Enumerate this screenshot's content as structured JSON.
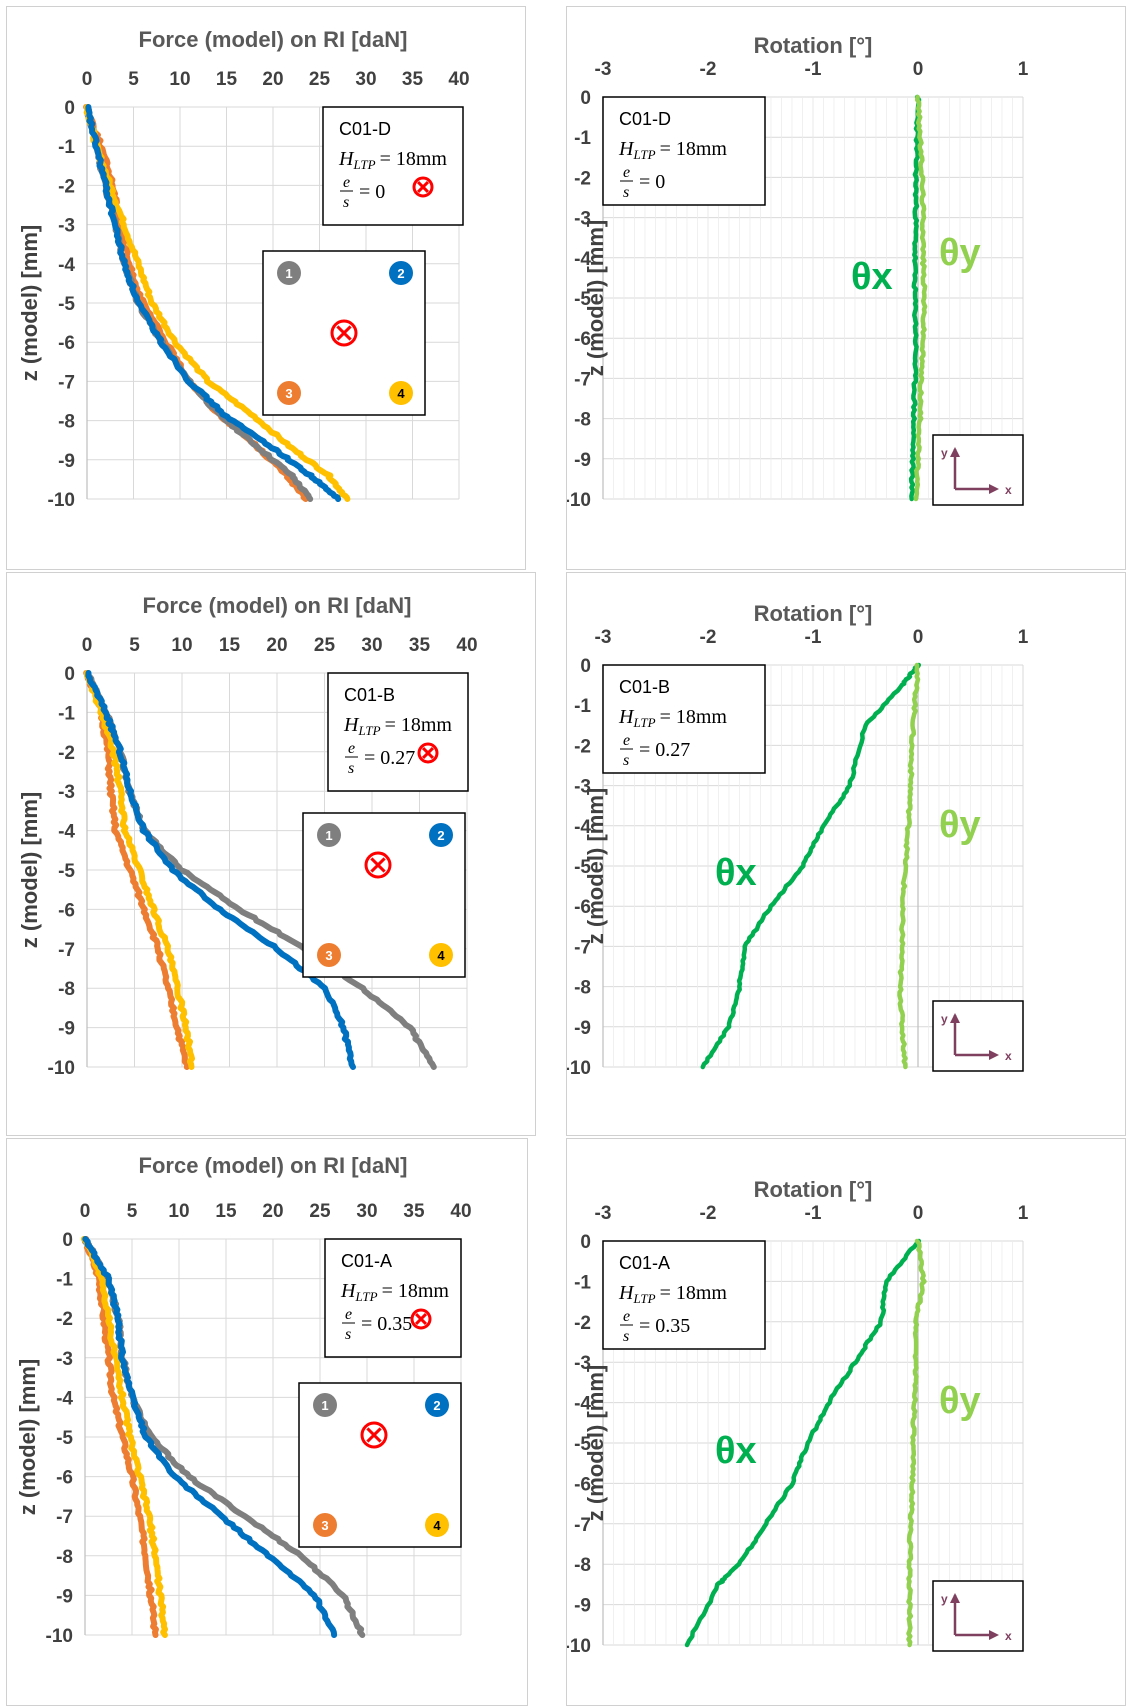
{
  "colors": {
    "pile1": "#7f7f7f",
    "pile2": "#0070c0",
    "pile3": "#ed7d31",
    "pile4": "#ffc000",
    "theta_x": "#00b050",
    "theta_y": "#92d050",
    "grid": "#d9d9d9",
    "marker": "#ff0000",
    "axes_icon": "#7f3f5f"
  },
  "chart_data": [
    {
      "panel": "force-c01-d",
      "type": "line",
      "title": "Force (model) on RI [daN]",
      "ylabel": "z (model) [mm]",
      "xlim": [
        0,
        40
      ],
      "ylim": [
        -10,
        0
      ],
      "xticks": [
        "0",
        "5",
        "10",
        "15",
        "20",
        "25",
        "30",
        "35",
        "40"
      ],
      "yticks": [
        "0",
        "-1",
        "-2",
        "-3",
        "-4",
        "-5",
        "-6",
        "-7",
        "-8",
        "-9",
        "-10"
      ],
      "annotation": {
        "id": "C01-D",
        "h_sym": "H",
        "h_sub": "LTP",
        "h_val": "= 18mm",
        "e_top": "e",
        "e_bot": "s",
        "e_val": "= 0"
      },
      "pile_labels": [
        "1",
        "2",
        "3",
        "4"
      ],
      "series": [
        {
          "pile": 1,
          "x": [
            0,
            1,
            2,
            3,
            4,
            5.5,
            8,
            11,
            14,
            18,
            22,
            24
          ],
          "y": [
            0,
            -1,
            -2,
            -3,
            -4,
            -5,
            -6,
            -7,
            -7.8,
            -8.6,
            -9.4,
            -10
          ]
        },
        {
          "pile": 2,
          "x": [
            0,
            1,
            2,
            3,
            4,
            5.5,
            8,
            11,
            15,
            20,
            24,
            27
          ],
          "y": [
            0,
            -1,
            -2,
            -3,
            -4,
            -5,
            -6,
            -7,
            -7.9,
            -8.7,
            -9.4,
            -10
          ]
        },
        {
          "pile": 3,
          "x": [
            0,
            1.5,
            2.8,
            3.5,
            4.5,
            6,
            8.5,
            11,
            14,
            18,
            21.5,
            23.5
          ],
          "y": [
            0,
            -1,
            -2,
            -3,
            -4,
            -5,
            -6,
            -7,
            -7.8,
            -8.6,
            -9.4,
            -10
          ]
        },
        {
          "pile": 4,
          "x": [
            0,
            1,
            2.5,
            4,
            5.5,
            7,
            9.5,
            13,
            18,
            22,
            26,
            28
          ],
          "y": [
            0,
            -1,
            -2,
            -3,
            -4,
            -5,
            -6,
            -7,
            -7.9,
            -8.7,
            -9.4,
            -10
          ]
        }
      ]
    },
    {
      "panel": "rotation-c01-d",
      "type": "line",
      "title": "Rotation [°]",
      "ylabel": "z (model) [mm]",
      "xlim": [
        -3,
        1
      ],
      "ylim": [
        -10,
        0
      ],
      "xticks": [
        "-3",
        "-2",
        "-1",
        "0",
        "1"
      ],
      "yticks": [
        "0",
        "-1",
        "-2",
        "-3",
        "-4",
        "-5",
        "-6",
        "-7",
        "-8",
        "-9",
        "-10"
      ],
      "annotation": {
        "id": "C01-D",
        "h_sym": "H",
        "h_sub": "LTP",
        "h_val": "= 18mm",
        "e_top": "e",
        "e_bot": "s",
        "e_val": "= 0"
      },
      "theta_x_label": "θx",
      "theta_y_label": "θy",
      "axes_icon": {
        "y": "y",
        "x": "x"
      },
      "series": [
        {
          "name": "θx",
          "x": [
            0,
            -0.01,
            -0.02,
            -0.02,
            -0.03,
            -0.03,
            -0.02,
            -0.03,
            -0.04,
            -0.05,
            -0.06
          ],
          "y": [
            0,
            -1,
            -2,
            -3,
            -4,
            -5,
            -6,
            -7,
            -8,
            -9,
            -10
          ]
        },
        {
          "name": "θy",
          "x": [
            0,
            0.02,
            0.04,
            0.05,
            0.05,
            0.06,
            0.05,
            0.03,
            0.02,
            0.0,
            -0.02
          ],
          "y": [
            0,
            -1,
            -2,
            -3,
            -4,
            -5,
            -6,
            -7,
            -8,
            -9,
            -10
          ]
        }
      ]
    },
    {
      "panel": "force-c01-b",
      "type": "line",
      "title": "Force (model) on RI [daN]",
      "ylabel": "z (model) [mm]",
      "xlim": [
        0,
        40
      ],
      "ylim": [
        -10,
        0
      ],
      "xticks": [
        "0",
        "5",
        "10",
        "15",
        "20",
        "25",
        "30",
        "35",
        "40"
      ],
      "yticks": [
        "0",
        "-1",
        "-2",
        "-3",
        "-4",
        "-5",
        "-6",
        "-7",
        "-8",
        "-9",
        "-10"
      ],
      "annotation": {
        "id": "C01-B",
        "h_sym": "H",
        "h_sub": "LTP",
        "h_val": "= 18mm",
        "e_top": "e",
        "e_bot": "s",
        "e_val": "= 0.27"
      },
      "pile_labels": [
        "1",
        "2",
        "3",
        "4"
      ],
      "series": [
        {
          "pile": 1,
          "x": [
            0,
            2,
            3.5,
            4.5,
            6,
            10,
            16,
            23,
            29,
            34,
            36.5
          ],
          "y": [
            0,
            -1,
            -2,
            -3,
            -4,
            -5,
            -6,
            -7,
            -8,
            -9,
            -10
          ]
        },
        {
          "pile": 2,
          "x": [
            0,
            2,
            3.5,
            4.5,
            6,
            9,
            14,
            20,
            25,
            27,
            28
          ],
          "y": [
            0,
            -1,
            -2,
            -3,
            -4,
            -5,
            -6,
            -7,
            -8,
            -9,
            -10
          ]
        },
        {
          "pile": 3,
          "x": [
            0,
            1.5,
            2.2,
            2.5,
            3,
            4.5,
            6,
            7.5,
            8.5,
            9.5,
            10.5
          ],
          "y": [
            0,
            -1,
            -2,
            -3,
            -4,
            -5,
            -6,
            -7,
            -8,
            -9,
            -10
          ]
        },
        {
          "pile": 4,
          "x": [
            0,
            1.5,
            2.8,
            3.5,
            4,
            5.5,
            7,
            8.5,
            9.5,
            10.5,
            11
          ],
          "y": [
            0,
            -1,
            -2,
            -3,
            -4,
            -5,
            -6,
            -7,
            -8,
            -9,
            -10
          ]
        }
      ]
    },
    {
      "panel": "rotation-c01-b",
      "type": "line",
      "title": "Rotation [°]",
      "ylabel": "z (model) [mm]",
      "xlim": [
        -3,
        1
      ],
      "ylim": [
        -10,
        0
      ],
      "xticks": [
        "-3",
        "-2",
        "-1",
        "0",
        "1"
      ],
      "yticks": [
        "0",
        "-1",
        "-2",
        "-3",
        "-4",
        "-5",
        "-6",
        "-7",
        "-8",
        "-9",
        "-10"
      ],
      "annotation": {
        "id": "C01-B",
        "h_sym": "H",
        "h_sub": "LTP",
        "h_val": "= 18mm",
        "e_top": "e",
        "e_bot": "s",
        "e_val": "= 0.27"
      },
      "theta_x_label": "θx",
      "theta_y_label": "θy",
      "axes_icon": {
        "y": "y",
        "x": "x"
      },
      "series": [
        {
          "name": "θx",
          "x": [
            0,
            -0.15,
            -0.5,
            -0.65,
            -0.9,
            -1.1,
            -1.4,
            -1.65,
            -1.7,
            -1.8,
            -2.05
          ],
          "y": [
            0,
            -0.5,
            -1.5,
            -3,
            -4,
            -5,
            -6,
            -7,
            -8,
            -9,
            -10
          ]
        },
        {
          "name": "θy",
          "x": [
            0,
            -0.03,
            -0.06,
            -0.07,
            -0.09,
            -0.12,
            -0.15,
            -0.15,
            -0.17,
            -0.15,
            -0.12
          ],
          "y": [
            0,
            -1,
            -2,
            -3,
            -4,
            -5,
            -6,
            -7,
            -8,
            -9,
            -10
          ]
        }
      ]
    },
    {
      "panel": "force-c01-a",
      "type": "line",
      "title": "Force (model) on RI [daN]",
      "ylabel": "z (model) [mm]",
      "xlim": [
        0,
        40
      ],
      "ylim": [
        -10,
        0
      ],
      "xticks": [
        "0",
        "5",
        "10",
        "15",
        "20",
        "25",
        "30",
        "35",
        "40"
      ],
      "yticks": [
        "0",
        "-1",
        "-2",
        "-3",
        "-4",
        "-5",
        "-6",
        "-7",
        "-8",
        "-9",
        "-10"
      ],
      "annotation": {
        "id": "C01-A",
        "h_sym": "H",
        "h_sub": "LTP",
        "h_val": "= 18mm",
        "e_top": "e",
        "e_bot": "s",
        "e_val": "= 0.35"
      },
      "pile_labels": [
        "1",
        "2",
        "3",
        "4"
      ],
      "series": [
        {
          "pile": 1,
          "x": [
            0,
            2.5,
            3.5,
            4,
            5,
            7,
            11,
            17,
            23,
            27.5,
            29.5
          ],
          "y": [
            0,
            -1,
            -2,
            -3,
            -4,
            -5,
            -6,
            -7,
            -8,
            -9,
            -10
          ]
        },
        {
          "pile": 2,
          "x": [
            0,
            2.5,
            3.5,
            4,
            5,
            6.5,
            9.5,
            14.5,
            19.5,
            24.5,
            26.5
          ],
          "y": [
            0,
            -1,
            -2,
            -3,
            -4,
            -5,
            -6,
            -7,
            -8,
            -9,
            -10
          ]
        },
        {
          "pile": 3,
          "x": [
            0,
            1.5,
            2,
            2.5,
            3,
            4,
            5,
            5.8,
            6.5,
            7,
            7.5
          ],
          "y": [
            0,
            -1,
            -2,
            -3,
            -4,
            -5,
            -6,
            -7,
            -8,
            -9,
            -10
          ]
        },
        {
          "pile": 4,
          "x": [
            0,
            1.8,
            2.5,
            3.2,
            4,
            4.8,
            5.8,
            6.8,
            7.5,
            8,
            8.5
          ],
          "y": [
            0,
            -1,
            -2,
            -3,
            -4,
            -5,
            -6,
            -7,
            -8,
            -9,
            -10
          ]
        }
      ]
    },
    {
      "panel": "rotation-c01-a",
      "type": "line",
      "title": "Rotation [°]",
      "ylabel": "z (model) [mm]",
      "xlim": [
        -3,
        1
      ],
      "ylim": [
        -10,
        0
      ],
      "xticks": [
        "-3",
        "-2",
        "-1",
        "0",
        "1"
      ],
      "yticks": [
        "0",
        "-1",
        "-2",
        "-3",
        "-4",
        "-5",
        "-6",
        "-7",
        "-8",
        "-9",
        "-10"
      ],
      "annotation": {
        "id": "C01-A",
        "h_sym": "H",
        "h_sub": "LTP",
        "h_val": "= 18mm",
        "e_top": "e",
        "e_bot": "s",
        "e_val": "= 0.35"
      },
      "theta_x_label": "θx",
      "theta_y_label": "θy",
      "axes_icon": {
        "y": "y",
        "x": "x"
      },
      "series": [
        {
          "name": "θx",
          "x": [
            0,
            -0.3,
            -0.35,
            -0.6,
            -0.85,
            -1.05,
            -1.2,
            -1.45,
            -1.7,
            -1.9,
            -2.2
          ],
          "y": [
            0,
            -1,
            -2,
            -3,
            -4,
            -5,
            -6,
            -7,
            -8,
            -8.5,
            -10
          ]
        },
        {
          "name": "θy",
          "x": [
            0,
            0.05,
            -0.02,
            -0.02,
            -0.03,
            -0.05,
            -0.05,
            -0.07,
            -0.08,
            -0.08,
            -0.08
          ],
          "y": [
            0,
            -1,
            -2,
            -3,
            -4,
            -5,
            -6,
            -7,
            -8,
            -9,
            -10
          ]
        }
      ]
    }
  ]
}
